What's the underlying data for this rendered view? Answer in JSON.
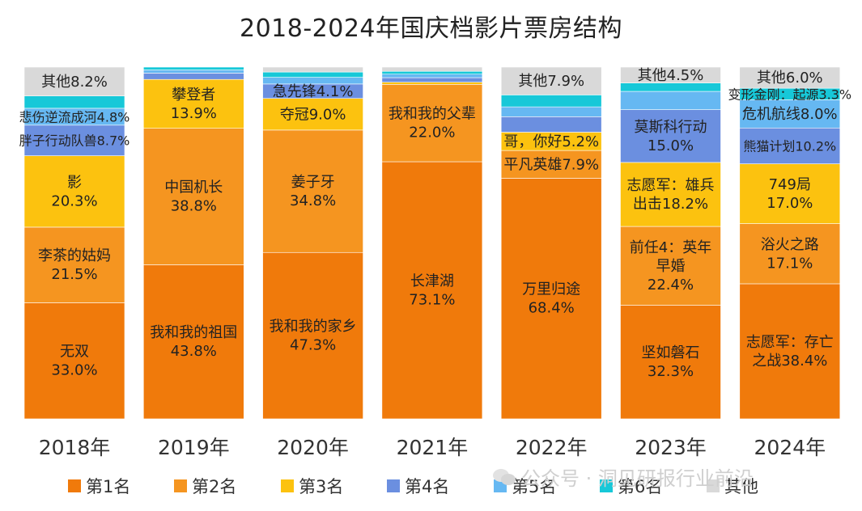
{
  "chart_data": {
    "type": "stacked-bar",
    "title": "2018-2024年国庆档影片票房结构",
    "categories": [
      "2018年",
      "2019年",
      "2020年",
      "2021年",
      "2022年",
      "2023年",
      "2024年"
    ],
    "ylim": [
      0,
      100
    ],
    "series": [
      {
        "name": "第1名",
        "color": "#f07a0b",
        "values": [
          33.0,
          43.8,
          47.3,
          73.1,
          68.4,
          32.3,
          38.4
        ]
      },
      {
        "name": "第2名",
        "color": "#f59520",
        "values": [
          21.5,
          38.8,
          34.8,
          22.0,
          7.9,
          22.4,
          17.1
        ]
      },
      {
        "name": "第3名",
        "color": "#fcc20f",
        "values": [
          20.3,
          13.9,
          9.0,
          0.6,
          5.2,
          18.2,
          17.0
        ]
      },
      {
        "name": "第4名",
        "color": "#6b8fe0",
        "values": [
          8.7,
          1.8,
          4.1,
          1.3,
          4.4,
          15.0,
          10.2
        ]
      },
      {
        "name": "第5名",
        "color": "#66b8f2",
        "values": [
          4.8,
          0.9,
          1.9,
          1.0,
          2.8,
          5.2,
          8.0
        ]
      },
      {
        "name": "第6名",
        "color": "#17c8d8",
        "values": [
          3.5,
          0.8,
          1.5,
          0.8,
          3.4,
          2.4,
          3.3
        ]
      },
      {
        "name": "其他",
        "color": "#d9d9d9",
        "values": [
          8.2,
          0.0,
          1.4,
          1.2,
          7.9,
          4.5,
          6.0
        ]
      }
    ],
    "labels": [
      [
        {
          "seg": 0,
          "lines": [
            "无双",
            "33.0%"
          ]
        },
        {
          "seg": 1,
          "lines": [
            "李茶的姑妈",
            "21.5%"
          ]
        },
        {
          "seg": 2,
          "lines": [
            "影",
            "20.3%"
          ]
        },
        {
          "seg": 3,
          "lines": [
            "胖子行动队兽8.7%"
          ]
        },
        {
          "seg": 4,
          "lines": [
            "悲伤逆流成河4.8%"
          ]
        },
        {
          "seg": 6,
          "lines": [
            "其他8.2%"
          ]
        }
      ],
      [
        {
          "seg": 0,
          "lines": [
            "我和我的祖国",
            "43.8%"
          ]
        },
        {
          "seg": 1,
          "lines": [
            "中国机长",
            "38.8%"
          ]
        },
        {
          "seg": 2,
          "lines": [
            "攀登者",
            "13.9%"
          ]
        }
      ],
      [
        {
          "seg": 0,
          "lines": [
            "我和我的家乡",
            "47.3%"
          ]
        },
        {
          "seg": 1,
          "lines": [
            "姜子牙",
            "34.8%"
          ]
        },
        {
          "seg": 2,
          "lines": [
            "夺冠9.0%"
          ]
        },
        {
          "seg": 3,
          "lines": [
            "急先锋4.1%"
          ]
        }
      ],
      [
        {
          "seg": 0,
          "lines": [
            "长津湖",
            "73.1%"
          ]
        },
        {
          "seg": 1,
          "lines": [
            "我和我的父辈",
            "22.0%"
          ]
        }
      ],
      [
        {
          "seg": 0,
          "lines": [
            "万里归途",
            "68.4%"
          ]
        },
        {
          "seg": 1,
          "lines": [
            "平凡英雄7.9%"
          ]
        },
        {
          "seg": 2,
          "lines": [
            "哥，你好5.2%"
          ]
        },
        {
          "seg": 6,
          "lines": [
            "其他7.9%"
          ]
        }
      ],
      [
        {
          "seg": 0,
          "lines": [
            "坚如磐石",
            "32.3%"
          ]
        },
        {
          "seg": 1,
          "lines": [
            "前任4：英年",
            "早婚",
            "22.4%"
          ]
        },
        {
          "seg": 2,
          "lines": [
            "志愿军：雄兵",
            "出击18.2%"
          ]
        },
        {
          "seg": 3,
          "lines": [
            "莫斯科行动",
            "15.0%"
          ]
        },
        {
          "seg": 6,
          "lines": [
            "其他4.5%"
          ]
        }
      ],
      [
        {
          "seg": 0,
          "lines": [
            "志愿军：存亡",
            "之战38.4%"
          ]
        },
        {
          "seg": 1,
          "lines": [
            "浴火之路",
            "17.1%"
          ]
        },
        {
          "seg": 2,
          "lines": [
            "749局",
            "17.0%"
          ]
        },
        {
          "seg": 3,
          "lines": [
            "熊猫计划10.2%"
          ]
        },
        {
          "seg": 4,
          "lines": [
            "危机航线8.0%"
          ]
        },
        {
          "seg": 5,
          "lines": [
            "变形金刚：起源3.3%"
          ]
        },
        {
          "seg": 6,
          "lines": [
            "其他6.0%"
          ]
        }
      ]
    ],
    "legend": [
      "第1名",
      "第2名",
      "第3名",
      "第4名",
      "第5名",
      "第6名",
      "其他"
    ],
    "legend_position": "bottom"
  },
  "watermark": "公众号 · 洞见研报行业前沿"
}
